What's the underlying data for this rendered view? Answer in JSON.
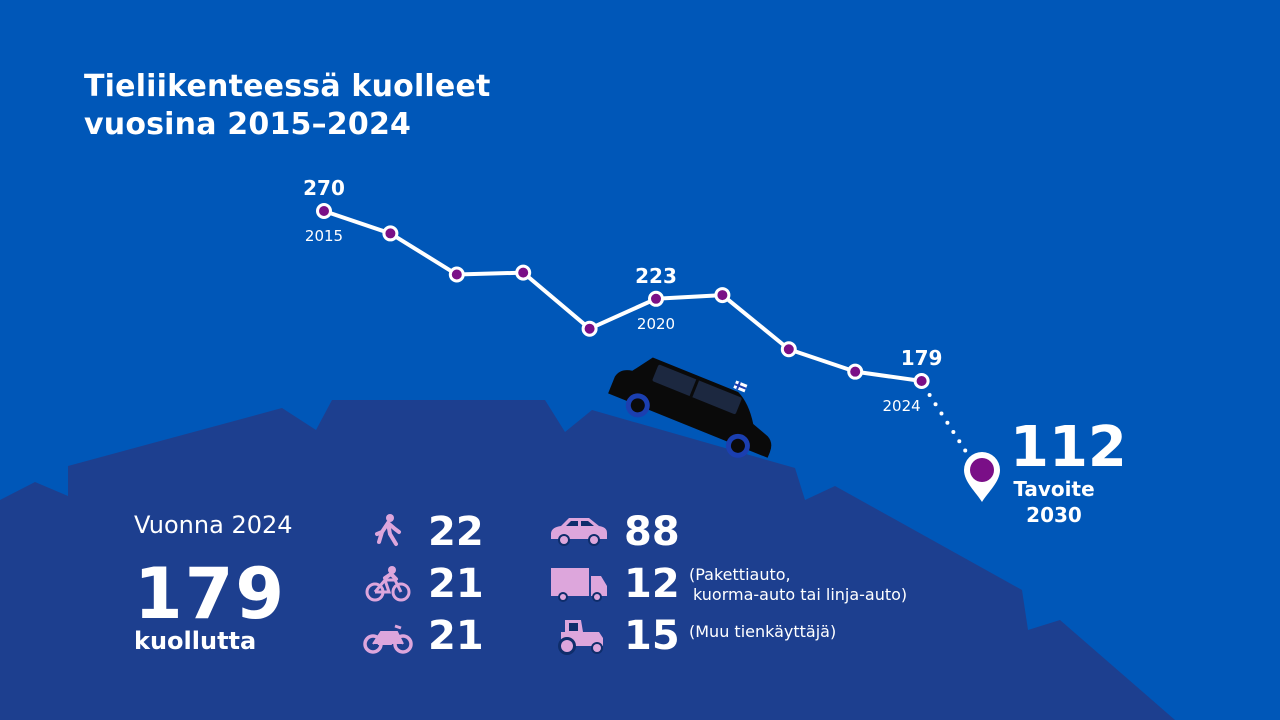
{
  "title": {
    "line1": "Tieliikenteessä kuolleet",
    "line2": "vuosina 2015–2024"
  },
  "colors": {
    "background": "#0057b8",
    "mountain": "#1d3f8f",
    "foreground_dark": "#0e2d6b",
    "line": "#ffffff",
    "marker": "#7a0f87",
    "icon": "#dda6dc"
  },
  "chart_data": {
    "type": "line",
    "x": [
      2015,
      2016,
      2017,
      2018,
      2019,
      2020,
      2021,
      2022,
      2023,
      2024
    ],
    "series": [
      {
        "values": [
          270,
          258,
          236,
          237,
          207,
          223,
          225,
          196,
          184,
          179
        ]
      }
    ],
    "labeled_points": [
      {
        "year": 2015,
        "value_label": "270",
        "year_label": "2015"
      },
      {
        "year": 2020,
        "value_label": "223",
        "year_label": "2020"
      },
      {
        "year": 2024,
        "value_label": "179",
        "year_label": "2024"
      }
    ],
    "target": {
      "value": 112,
      "value_label": "112",
      "label_line1": "Tavoite",
      "label_line2": "2030"
    },
    "ylim": [
      100,
      290
    ]
  },
  "summary": {
    "year_label": "Vuonna 2024",
    "total": "179",
    "unit": "kuollutta"
  },
  "categories": [
    {
      "icon": "pedestrian-icon",
      "value": "22"
    },
    {
      "icon": "bicycle-icon",
      "value": "21"
    },
    {
      "icon": "motorcycle-icon",
      "value": "21"
    },
    {
      "icon": "car-icon",
      "value": "88"
    },
    {
      "icon": "truck-icon",
      "value": "12",
      "note_line1": "(Pakettiauto,",
      "note_line2": "kuorma-auto tai linja-auto)"
    },
    {
      "icon": "tractor-icon",
      "value": "15",
      "note_line1": "(Muu tienkäyttäjä)"
    }
  ]
}
